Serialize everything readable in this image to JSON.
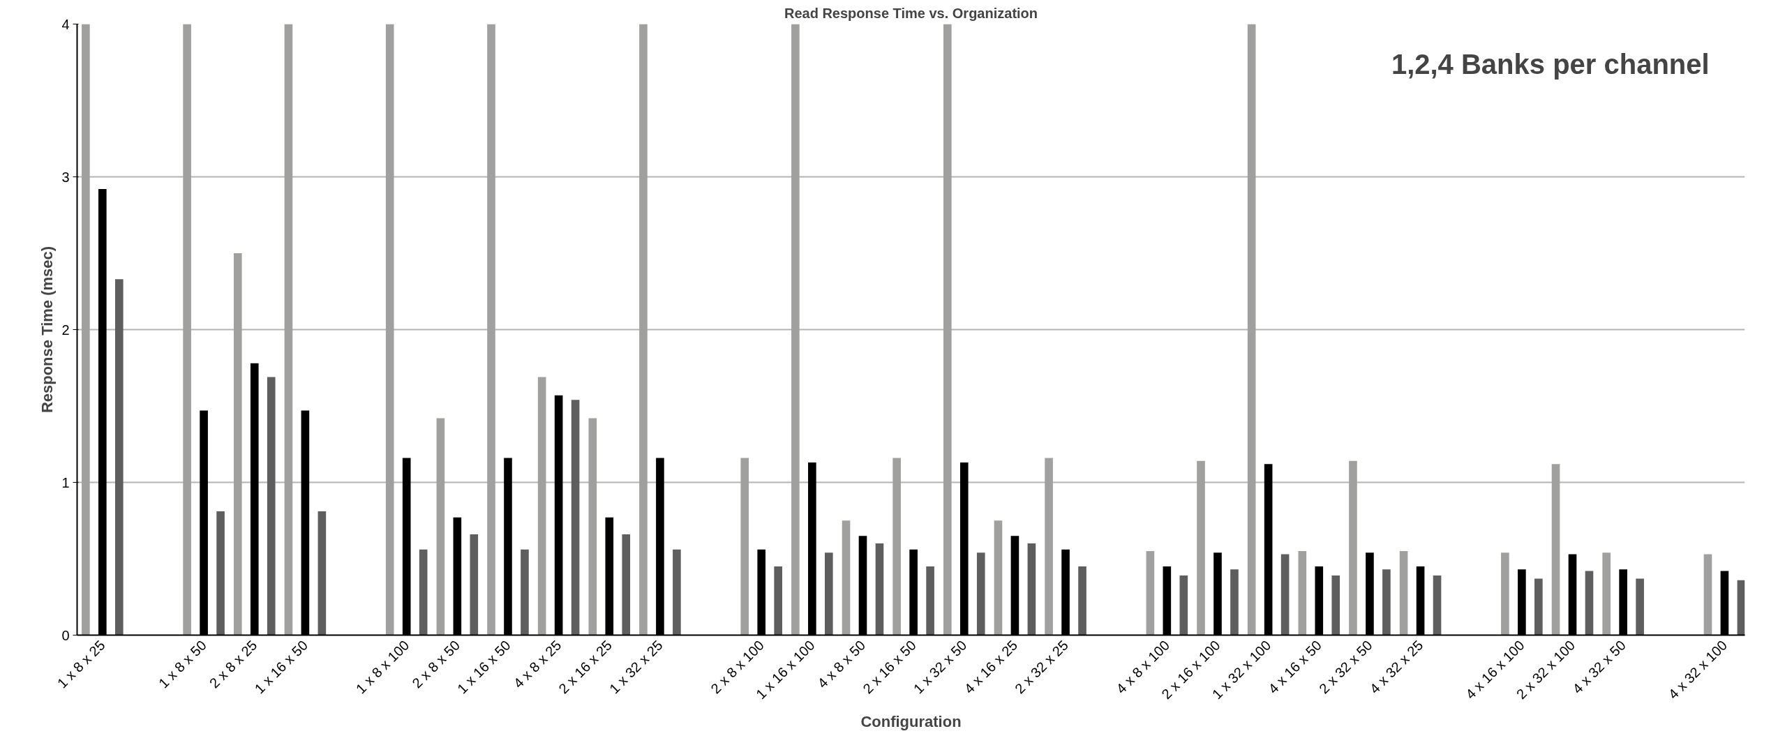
{
  "chart_data": {
    "type": "bar",
    "title": "Read Response Time vs. Organization",
    "xlabel": "Configuration",
    "ylabel": "Response Time (msec)",
    "categories": [
      "1 x 8 x 25",
      null,
      "1 x 8 x 50",
      "2 x 8 x 25",
      "1 x 16 x 50",
      null,
      "1 x 8 x 100",
      "2 x 8 x 50",
      "1 x 16 x 50",
      "4 x 8 x 25",
      "2 x 16 x 25",
      "1 x 32 x 25",
      null,
      "2 x 8 x 100",
      "1 x 16 x 100",
      "4 x 8 x 50",
      "2 x 16 x 50",
      "1 x 32 x 50",
      "4 x 16 x 25",
      "2 x 32 x 25",
      null,
      "4 x 8 x 100",
      "2 x 16 x 100",
      "1 x 32 x 100",
      "4 x 16 x 50",
      "2 x 32 x 50",
      "4 x 32 x 25",
      null,
      "4 x 16 x 100",
      "2 x 32 x 100",
      "4 x 32 x 50",
      null,
      "4 x 32 x 100"
    ],
    "series": [
      {
        "color": "#a0a19f",
        "values": [
          4,
          null,
          4,
          2.5,
          4,
          null,
          4,
          1.42,
          4,
          1.69,
          1.42,
          4,
          null,
          1.16,
          4,
          0.75,
          1.16,
          4,
          0.75,
          1.16,
          null,
          0.55,
          1.14,
          4,
          0.55,
          1.14,
          0.55,
          null,
          0.54,
          1.12,
          0.54,
          null,
          0.53
        ]
      },
      {
        "color": "#000000",
        "values": [
          2.92,
          null,
          1.47,
          1.78,
          1.47,
          null,
          1.16,
          0.77,
          1.16,
          1.57,
          0.77,
          1.16,
          null,
          0.56,
          1.13,
          0.65,
          0.56,
          1.13,
          0.65,
          0.56,
          null,
          0.45,
          0.54,
          1.12,
          0.45,
          0.54,
          0.45,
          null,
          0.43,
          0.53,
          0.43,
          null,
          0.42
        ]
      },
      {
        "color": "#5d5e5d",
        "values": [
          2.33,
          null,
          0.81,
          1.69,
          0.81,
          null,
          0.56,
          0.66,
          0.56,
          1.54,
          0.66,
          0.56,
          null,
          0.45,
          0.54,
          0.6,
          0.45,
          0.54,
          0.6,
          0.45,
          null,
          0.39,
          0.43,
          0.53,
          0.39,
          0.43,
          0.39,
          null,
          0.37,
          0.42,
          0.37,
          null,
          0.36
        ]
      }
    ],
    "ylim": [
      0,
      4
    ],
    "yticks": [
      0,
      1,
      2,
      3,
      4
    ],
    "grid": "y",
    "annotations": [
      "1,2,4 Banks per channel"
    ]
  }
}
